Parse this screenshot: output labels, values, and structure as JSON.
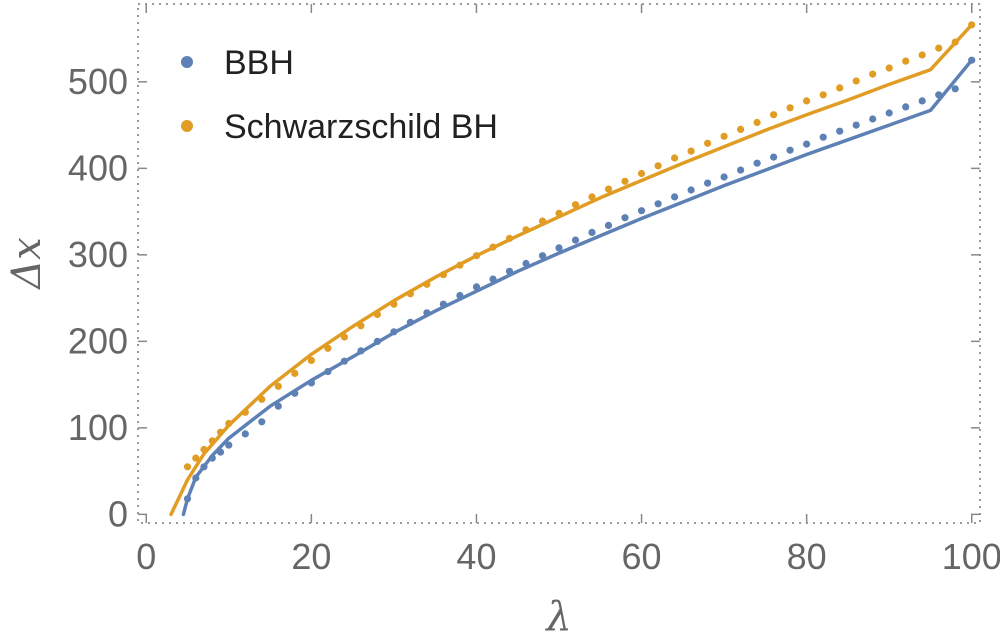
{
  "chart_data": {
    "type": "scatter",
    "xlabel": "λ",
    "ylabel": "Δx",
    "xlim": [
      -1,
      101
    ],
    "ylim": [
      -10,
      590
    ],
    "x_ticks": [
      0,
      20,
      40,
      60,
      80,
      100
    ],
    "y_ticks": [
      0,
      100,
      200,
      300,
      400,
      500
    ],
    "grid": false,
    "frame": "dotted",
    "legend": "top-left",
    "series": [
      {
        "name": "BBH",
        "color": "#5e81b5",
        "points": [
          [
            5,
            18
          ],
          [
            6,
            42
          ],
          [
            7,
            55
          ],
          [
            8,
            65
          ],
          [
            9,
            72
          ],
          [
            10,
            80
          ],
          [
            12,
            93
          ],
          [
            14,
            107
          ],
          [
            16,
            125
          ],
          [
            18,
            140
          ],
          [
            20,
            152
          ],
          [
            22,
            165
          ],
          [
            24,
            177
          ],
          [
            26,
            189
          ],
          [
            28,
            200
          ],
          [
            30,
            211
          ],
          [
            32,
            222
          ],
          [
            34,
            233
          ],
          [
            36,
            243
          ],
          [
            38,
            253
          ],
          [
            40,
            263
          ],
          [
            42,
            272
          ],
          [
            44,
            281
          ],
          [
            46,
            290
          ],
          [
            48,
            299
          ],
          [
            50,
            308
          ],
          [
            52,
            317
          ],
          [
            54,
            326
          ],
          [
            56,
            334
          ],
          [
            58,
            343
          ],
          [
            60,
            351
          ],
          [
            62,
            359
          ],
          [
            64,
            367
          ],
          [
            66,
            375
          ],
          [
            68,
            383
          ],
          [
            70,
            390
          ],
          [
            72,
            398
          ],
          [
            74,
            406
          ],
          [
            76,
            413
          ],
          [
            78,
            421
          ],
          [
            80,
            428
          ],
          [
            82,
            436
          ],
          [
            84,
            443
          ],
          [
            86,
            450
          ],
          [
            88,
            457
          ],
          [
            90,
            464
          ],
          [
            92,
            471
          ],
          [
            94,
            478
          ],
          [
            96,
            485
          ],
          [
            98,
            492
          ],
          [
            100,
            525
          ]
        ],
        "fit": [
          [
            4.5,
            0
          ],
          [
            5,
            18
          ],
          [
            6,
            43
          ],
          [
            8,
            68
          ],
          [
            10,
            88
          ],
          [
            15,
            125
          ],
          [
            20,
            155
          ],
          [
            25,
            182
          ],
          [
            30,
            210
          ],
          [
            35,
            235
          ],
          [
            40,
            258
          ],
          [
            45,
            281
          ],
          [
            50,
            302
          ],
          [
            55,
            322
          ],
          [
            60,
            342
          ],
          [
            65,
            361
          ],
          [
            70,
            380
          ],
          [
            75,
            398
          ],
          [
            80,
            416
          ],
          [
            85,
            433
          ],
          [
            90,
            450
          ],
          [
            95,
            467
          ],
          [
            100,
            525
          ]
        ]
      },
      {
        "name": "Schwarzschild BH",
        "color": "#e19c24",
        "points": [
          [
            5,
            55
          ],
          [
            6,
            65
          ],
          [
            7,
            75
          ],
          [
            8,
            85
          ],
          [
            9,
            95
          ],
          [
            10,
            105
          ],
          [
            12,
            118
          ],
          [
            14,
            133
          ],
          [
            16,
            148
          ],
          [
            18,
            163
          ],
          [
            20,
            178
          ],
          [
            22,
            192
          ],
          [
            24,
            205
          ],
          [
            26,
            218
          ],
          [
            28,
            231
          ],
          [
            30,
            243
          ],
          [
            32,
            255
          ],
          [
            34,
            266
          ],
          [
            36,
            277
          ],
          [
            38,
            288
          ],
          [
            40,
            299
          ],
          [
            42,
            309
          ],
          [
            44,
            319
          ],
          [
            46,
            329
          ],
          [
            48,
            339
          ],
          [
            50,
            348
          ],
          [
            52,
            358
          ],
          [
            54,
            367
          ],
          [
            56,
            376
          ],
          [
            58,
            385
          ],
          [
            60,
            394
          ],
          [
            62,
            403
          ],
          [
            64,
            412
          ],
          [
            66,
            420
          ],
          [
            68,
            429
          ],
          [
            70,
            437
          ],
          [
            72,
            445
          ],
          [
            74,
            453
          ],
          [
            76,
            462
          ],
          [
            78,
            470
          ],
          [
            80,
            478
          ],
          [
            82,
            485
          ],
          [
            84,
            493
          ],
          [
            86,
            501
          ],
          [
            88,
            509
          ],
          [
            90,
            516
          ],
          [
            92,
            524
          ],
          [
            94,
            531
          ],
          [
            96,
            539
          ],
          [
            98,
            546
          ],
          [
            100,
            566
          ]
        ],
        "fit": [
          [
            3,
            0
          ],
          [
            4,
            20
          ],
          [
            5,
            40
          ],
          [
            7,
            70
          ],
          [
            10,
            103
          ],
          [
            15,
            148
          ],
          [
            20,
            185
          ],
          [
            25,
            217
          ],
          [
            30,
            247
          ],
          [
            35,
            274
          ],
          [
            40,
            299
          ],
          [
            45,
            322
          ],
          [
            50,
            344
          ],
          [
            55,
            366
          ],
          [
            60,
            386
          ],
          [
            65,
            406
          ],
          [
            70,
            425
          ],
          [
            75,
            444
          ],
          [
            80,
            462
          ],
          [
            85,
            479
          ],
          [
            90,
            497
          ],
          [
            95,
            514
          ],
          [
            100,
            566
          ]
        ]
      }
    ]
  }
}
